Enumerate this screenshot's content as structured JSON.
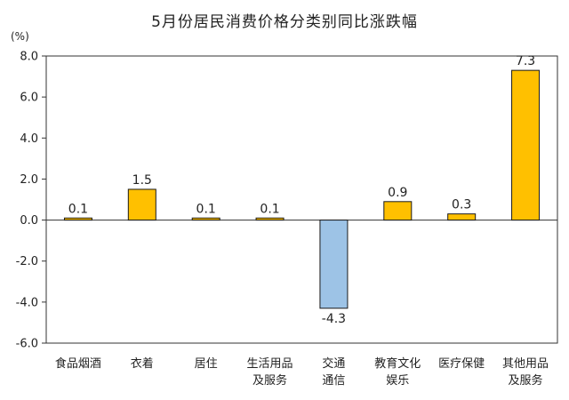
{
  "chart_data": {
    "type": "bar",
    "title": "5月份居民消费价格分类别同比涨跌幅",
    "unit_label": "(%)",
    "categories": [
      [
        "食品烟酒"
      ],
      [
        "衣着"
      ],
      [
        "居住"
      ],
      [
        "生活用品",
        "及服务"
      ],
      [
        "交通",
        "通信"
      ],
      [
        "教育文化",
        "娱乐"
      ],
      [
        "医疗保健"
      ],
      [
        "其他用品",
        "及服务"
      ]
    ],
    "values": [
      0.1,
      1.5,
      0.1,
      0.1,
      -4.3,
      0.9,
      0.3,
      7.3
    ],
    "value_labels": [
      "0.1",
      "1.5",
      "0.1",
      "0.1",
      "-4.3",
      "0.9",
      "0.3",
      "7.3"
    ],
    "ylim": [
      -6.0,
      8.0
    ],
    "yticks": [
      8.0,
      6.0,
      4.0,
      2.0,
      0.0,
      -2.0,
      -4.0,
      -6.0
    ],
    "ytick_labels": [
      "8.0",
      "6.0",
      "4.0",
      "2.0",
      "0.0",
      "-2.0",
      "-4.0",
      "-6.0"
    ],
    "grid": false,
    "colors": {
      "positive": "#FFC000",
      "negative": "#9DC3E6",
      "bar_outline": "#1a1a1a",
      "axis": "#333333"
    }
  }
}
